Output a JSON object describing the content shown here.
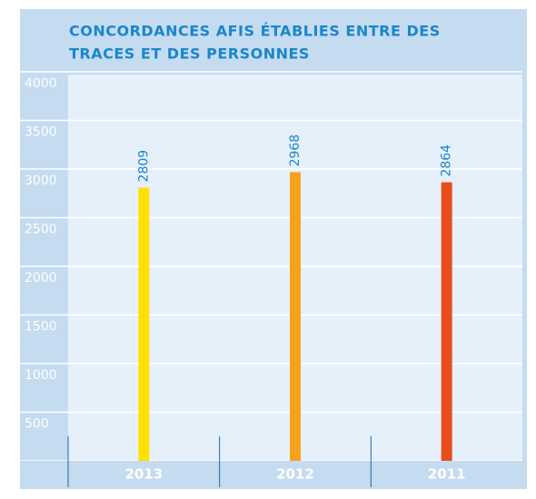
{
  "chart_data": {
    "type": "bar",
    "title_lines": [
      "CONCORDANCES AFIS ÉTABLIES ENTRE DES",
      "TRACES ET DES PERSONNES"
    ],
    "categories": [
      "2013",
      "2012",
      "2011"
    ],
    "values": [
      2809,
      2968,
      2864
    ],
    "colors": [
      "#ffe000",
      "#f7a21b",
      "#e84e1b"
    ],
    "ylim": [
      0,
      4000
    ],
    "yticks": [
      0,
      500,
      1000,
      1500,
      2000,
      2500,
      3000,
      3500,
      4000
    ],
    "grid": true
  }
}
